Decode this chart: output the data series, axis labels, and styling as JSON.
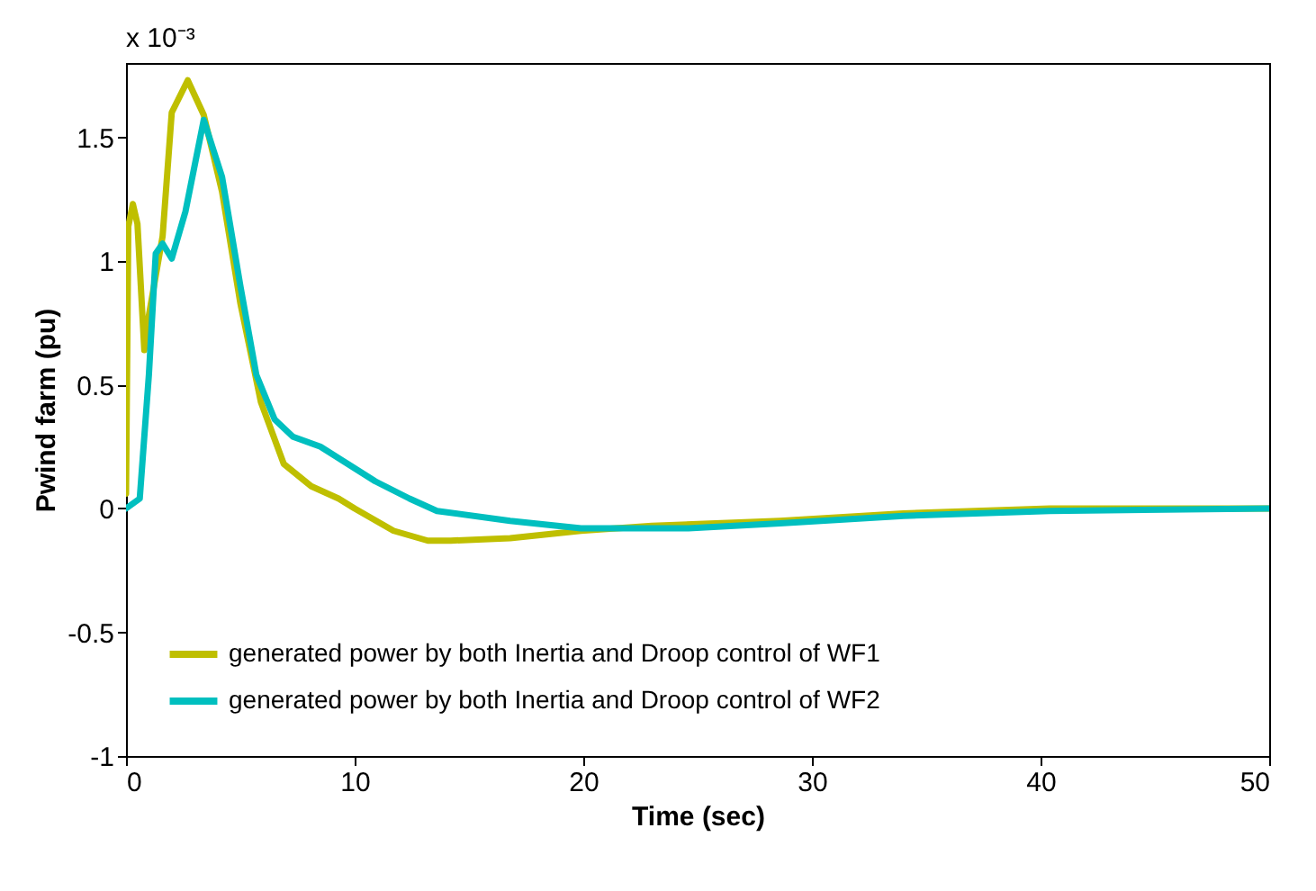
{
  "chart_data": {
    "type": "line",
    "xlabel": "Time (sec)",
    "ylabel": "Pwind farm (pu)",
    "annotations": [
      "x 10⁻³"
    ],
    "xlim": [
      0,
      50
    ],
    "ylim": [
      -1,
      1.8
    ],
    "xticks": [
      0,
      10,
      20,
      30,
      40,
      50
    ],
    "yticks": [
      -1,
      -0.5,
      0,
      0.5,
      1,
      1.5
    ],
    "grid": false,
    "legend": "bottom left",
    "line_style": "solid",
    "marker": "none",
    "series": [
      {
        "name": "generated power by both Inertia and Droop control of WF1",
        "color": "#bfbf00",
        "x": [
          0,
          0.1,
          0.3,
          0.5,
          0.8,
          1.0,
          1.6,
          2.0,
          2.7,
          3.4,
          4.2,
          5,
          5.9,
          6.9,
          8.1,
          9.3,
          10,
          11.7,
          13.2,
          14.2,
          16.8,
          19.9,
          23,
          28.6,
          34,
          40.4,
          50
        ],
        "values": [
          0.06,
          1.14,
          1.23,
          1.15,
          0.64,
          0.78,
          1.1,
          1.6,
          1.73,
          1.59,
          1.28,
          0.83,
          0.43,
          0.18,
          0.09,
          0.04,
          0,
          -0.09,
          -0.13,
          -0.13,
          -0.12,
          -0.09,
          -0.07,
          -0.05,
          -0.02,
          0,
          0
        ]
      },
      {
        "name": "generated power by both Inertia and Droop control of WF2",
        "color": "#00bfbf",
        "x": [
          0,
          0.6,
          1.0,
          1.3,
          1.6,
          2.0,
          2.6,
          3.4,
          4.2,
          5,
          5.7,
          6.5,
          7.3,
          8.5,
          9.7,
          10.9,
          12.4,
          13.6,
          16.8,
          19.9,
          24.6,
          28.6,
          34,
          40.4,
          50
        ],
        "values": [
          0,
          0.04,
          0.54,
          1.03,
          1.07,
          1.01,
          1.2,
          1.57,
          1.34,
          0.9,
          0.54,
          0.36,
          0.29,
          0.25,
          0.18,
          0.11,
          0.04,
          -0.01,
          -0.05,
          -0.08,
          -0.08,
          -0.06,
          -0.03,
          -0.01,
          0
        ]
      }
    ]
  }
}
